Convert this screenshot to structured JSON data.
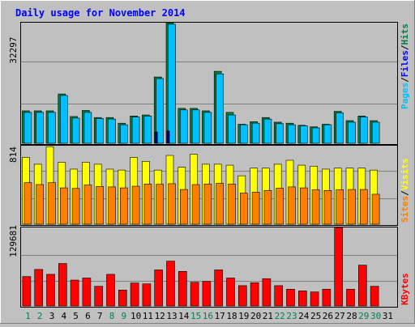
{
  "chart_data": [
    {
      "type": "bar",
      "title": "Daily usage for November 2014",
      "panel": "hits-files-pages",
      "y_max_label": "32297",
      "ylim": [
        0,
        32297
      ],
      "legend": [
        "Pages",
        "Files",
        "Hits"
      ],
      "legend_separator": "/",
      "categories": [
        "1",
        "2",
        "3",
        "4",
        "5",
        "6",
        "7",
        "8",
        "9",
        "10",
        "11",
        "12",
        "13",
        "14",
        "15",
        "16",
        "17",
        "18",
        "19",
        "20",
        "21",
        "22",
        "23",
        "24",
        "25",
        "26",
        "27",
        "28",
        "29",
        "30",
        "31"
      ],
      "series": [
        {
          "name": "Hits",
          "values": [
            8683,
            8683,
            8683,
            13204,
            7165,
            8793,
            6891,
            6891,
            5374,
            7303,
            7578,
            17752,
            32297,
            9345,
            9345,
            8683,
            19269,
            8269,
            5098,
            5787,
            6891,
            5650,
            5374,
            4822,
            4409,
            5098,
            8545,
            6063,
            7303,
            6063,
            0
          ]
        },
        {
          "name": "Files",
          "values": [
            8269,
            8269,
            8269,
            12790,
            6753,
            8269,
            6615,
            6477,
            4960,
            7026,
            7303,
            17338,
            31884,
            8931,
            8931,
            8269,
            18579,
            7578,
            4960,
            5374,
            6477,
            5236,
            4960,
            4685,
            4133,
            4960,
            8131,
            5650,
            7026,
            5650,
            0
          ]
        },
        {
          "name": "Pages",
          "values": [
            0,
            0,
            0,
            0,
            0,
            0,
            0,
            0,
            0,
            0,
            0,
            3030,
            3307,
            0,
            0,
            0,
            0,
            0,
            0,
            0,
            0,
            0,
            0,
            0,
            0,
            0,
            0,
            0,
            0,
            0,
            0
          ]
        }
      ]
    },
    {
      "type": "bar",
      "panel": "visits-sites",
      "y_max_label": "814",
      "ylim": [
        0,
        814
      ],
      "legend": [
        "Sites",
        "Visits"
      ],
      "legend_separator": "/",
      "categories": [
        "1",
        "2",
        "3",
        "4",
        "5",
        "6",
        "7",
        "8",
        "9",
        "10",
        "11",
        "12",
        "13",
        "14",
        "15",
        "16",
        "17",
        "18",
        "19",
        "20",
        "21",
        "22",
        "23",
        "24",
        "25",
        "26",
        "27",
        "28",
        "29",
        "30",
        "31"
      ],
      "series": [
        {
          "name": "Visits",
          "values": [
            693,
            622,
            804,
            642,
            571,
            642,
            622,
            571,
            561,
            693,
            652,
            561,
            713,
            591,
            724,
            622,
            622,
            612,
            502,
            581,
            581,
            622,
            663,
            612,
            602,
            571,
            581,
            581,
            581,
            561,
            0
          ]
        },
        {
          "name": "Sites",
          "values": [
            431,
            411,
            431,
            377,
            371,
            407,
            391,
            387,
            377,
            394,
            417,
            414,
            420,
            360,
            411,
            417,
            424,
            417,
            323,
            333,
            350,
            373,
            387,
            377,
            357,
            350,
            357,
            360,
            360,
            311,
            0
          ]
        }
      ]
    },
    {
      "type": "bar",
      "panel": "kbytes",
      "y_max_label": "129681",
      "ylim": [
        0,
        129681
      ],
      "legend": [
        "KBytes"
      ],
      "categories": [
        "1",
        "2",
        "3",
        "4",
        "5",
        "6",
        "7",
        "8",
        "9",
        "10",
        "11",
        "12",
        "13",
        "14",
        "15",
        "16",
        "17",
        "18",
        "19",
        "20",
        "21",
        "22",
        "23",
        "24",
        "25",
        "26",
        "27",
        "28",
        "29",
        "30",
        "31"
      ],
      "series": [
        {
          "name": "KBytes",
          "values": [
            48560,
            60310,
            52240,
            70100,
            42710,
            46160,
            32460,
            52240,
            26310,
            37900,
            36520,
            59540,
            74000,
            57090,
            39030,
            40490,
            59540,
            46160,
            33540,
            38410,
            45130,
            33540,
            27690,
            24840,
            23160,
            27690,
            129681,
            27690,
            67400,
            32460,
            0
          ]
        }
      ]
    }
  ],
  "colors": {
    "hits": "#008040",
    "files": "#00c0ff",
    "pages": "#000080",
    "visits": "#ffff00",
    "sites": "#ff8000",
    "kbytes": "#ff0000",
    "title": "#0000ff",
    "weekend": "#00805c",
    "weekday": "#000000",
    "background": "#c0c0c0"
  },
  "weekend_days": [
    1,
    2,
    8,
    9,
    15,
    16,
    22,
    23,
    29,
    30
  ]
}
